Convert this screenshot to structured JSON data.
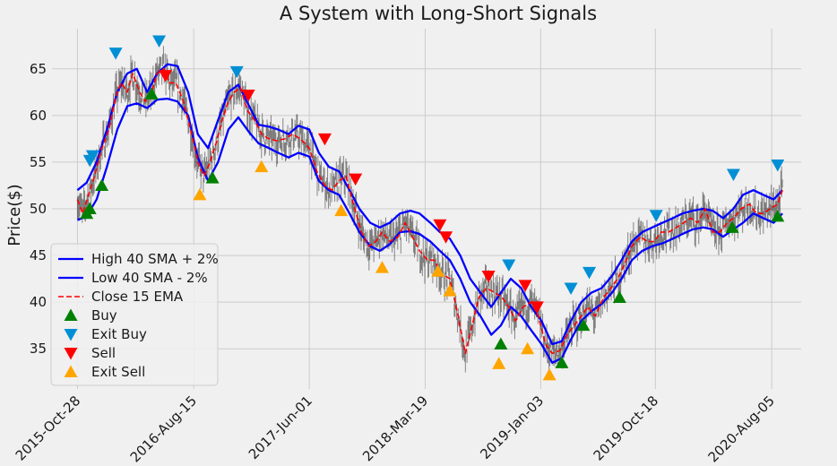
{
  "chart_data": {
    "type": "line",
    "title": "A System with Long-Short Signals",
    "xlabel": "",
    "ylabel": "Price($)",
    "x_range": [
      "2015-08-25",
      "2020-10-18"
    ],
    "ylim": [
      30.7,
      69.3
    ],
    "y_ticks": [
      35,
      40,
      45,
      50,
      55,
      60,
      65
    ],
    "x_ticks": [
      "2015-Oct-28",
      "2016-Aug-15",
      "2017-Jun-01",
      "2018-Mar-19",
      "2019-Jan-03",
      "2019-Oct-18",
      "2020-Aug-05"
    ],
    "grid": true,
    "legend_position": "lower-left",
    "colors": {
      "upper": "#0000ff",
      "lower": "#0000ff",
      "ema": "#ff0000",
      "buy": "#008000",
      "exit_buy": "#008fd5",
      "sell": "#ff0000",
      "exit_sell": "#ffa500",
      "candles": "#000000",
      "background": "#f0f0f0",
      "grid": "#cbcbcb"
    },
    "series": [
      {
        "name": "High 40 SMA + 2%",
        "style": "solid",
        "x": [
          "2015-10-28",
          "2015-11-20",
          "2015-12-15",
          "2016-01-10",
          "2016-02-05",
          "2016-03-01",
          "2016-03-25",
          "2016-04-20",
          "2016-05-15",
          "2016-06-10",
          "2016-07-05",
          "2016-08-01",
          "2016-08-25",
          "2016-09-20",
          "2016-10-15",
          "2016-11-10",
          "2016-12-05",
          "2017-01-01",
          "2017-01-25",
          "2017-02-20",
          "2017-03-15",
          "2017-04-10",
          "2017-05-05",
          "2017-06-01",
          "2017-06-25",
          "2017-07-20",
          "2017-08-15",
          "2017-09-10",
          "2017-10-05",
          "2017-11-01",
          "2017-11-25",
          "2017-12-20",
          "2018-01-15",
          "2018-02-10",
          "2018-03-05",
          "2018-04-01",
          "2018-04-25",
          "2018-05-20",
          "2018-06-15",
          "2018-07-10",
          "2018-08-05",
          "2018-09-01",
          "2018-09-25",
          "2018-10-20",
          "2018-11-15",
          "2018-12-10",
          "2019-01-05",
          "2019-02-01",
          "2019-02-25",
          "2019-03-20",
          "2019-04-15",
          "2019-05-10",
          "2019-06-05",
          "2019-07-01",
          "2019-07-25",
          "2019-08-20",
          "2019-09-15",
          "2019-10-10",
          "2019-11-05",
          "2019-12-01",
          "2019-12-25",
          "2020-01-20",
          "2020-02-15",
          "2020-03-10",
          "2020-04-05",
          "2020-05-01",
          "2020-05-25",
          "2020-06-20",
          "2020-07-15",
          "2020-08-10",
          "2020-09-01"
        ],
        "y": [
          52.0,
          52.8,
          55.0,
          58.5,
          62.5,
          64.5,
          65.0,
          62.5,
          64.5,
          65.5,
          65.3,
          62.5,
          58.0,
          56.5,
          59.5,
          62.5,
          63.3,
          61.0,
          59.0,
          58.8,
          58.5,
          58.0,
          58.9,
          58.5,
          56.0,
          54.5,
          54.0,
          52.0,
          50.0,
          48.5,
          48.0,
          48.5,
          49.5,
          49.8,
          49.5,
          48.5,
          47.5,
          46.8,
          45.0,
          42.5,
          41.0,
          39.5,
          41.0,
          42.5,
          41.5,
          39.5,
          38.0,
          35.5,
          35.8,
          38.0,
          40.0,
          41.0,
          41.5,
          42.8,
          44.5,
          46.5,
          47.5,
          48.0,
          48.5,
          49.0,
          49.5,
          49.8,
          50.0,
          49.8,
          49.0,
          50.0,
          51.5,
          52.0,
          51.5,
          51.0,
          52.0
        ]
      },
      {
        "name": "Low 40 SMA - 2%",
        "style": "solid",
        "x": [
          "2015-10-28",
          "2015-11-20",
          "2015-12-15",
          "2016-01-10",
          "2016-02-05",
          "2016-03-01",
          "2016-03-25",
          "2016-04-20",
          "2016-05-15",
          "2016-06-10",
          "2016-07-05",
          "2016-08-01",
          "2016-08-25",
          "2016-09-20",
          "2016-10-15",
          "2016-11-10",
          "2016-12-05",
          "2017-01-01",
          "2017-01-25",
          "2017-02-20",
          "2017-03-15",
          "2017-04-10",
          "2017-05-05",
          "2017-06-01",
          "2017-06-25",
          "2017-07-20",
          "2017-08-15",
          "2017-09-10",
          "2017-10-05",
          "2017-11-01",
          "2017-11-25",
          "2017-12-20",
          "2018-01-15",
          "2018-02-10",
          "2018-03-05",
          "2018-04-01",
          "2018-04-25",
          "2018-05-20",
          "2018-06-15",
          "2018-07-10",
          "2018-08-05",
          "2018-09-01",
          "2018-09-25",
          "2018-10-20",
          "2018-11-15",
          "2018-12-10",
          "2019-01-05",
          "2019-02-01",
          "2019-02-25",
          "2019-03-20",
          "2019-04-15",
          "2019-05-10",
          "2019-06-05",
          "2019-07-01",
          "2019-07-25",
          "2019-08-20",
          "2019-09-15",
          "2019-10-10",
          "2019-11-05",
          "2019-12-01",
          "2019-12-25",
          "2020-01-20",
          "2020-02-15",
          "2020-03-10",
          "2020-04-05",
          "2020-05-01",
          "2020-05-25",
          "2020-06-20",
          "2020-07-15",
          "2020-08-10",
          "2020-09-01"
        ],
        "y": [
          48.8,
          49.2,
          51.0,
          54.5,
          58.5,
          61.0,
          61.3,
          60.8,
          61.7,
          61.8,
          61.5,
          60.0,
          55.5,
          53.0,
          55.0,
          58.5,
          59.8,
          58.2,
          57.0,
          56.5,
          56.0,
          55.5,
          56.0,
          55.6,
          53.0,
          52.0,
          51.5,
          49.5,
          47.5,
          46.0,
          45.5,
          46.2,
          47.5,
          47.6,
          47.3,
          46.5,
          45.5,
          44.5,
          42.5,
          40.0,
          38.5,
          36.5,
          37.5,
          39.5,
          38.5,
          37.0,
          35.5,
          33.5,
          34.0,
          36.0,
          38.0,
          39.0,
          39.8,
          41.0,
          42.5,
          44.5,
          45.5,
          46.0,
          46.3,
          46.8,
          47.3,
          47.8,
          48.0,
          47.8,
          47.0,
          47.8,
          48.5,
          49.5,
          49.0,
          48.5,
          49.5
        ]
      },
      {
        "name": "Close 15 EMA",
        "style": "dashed",
        "x": [
          "2015-10-28",
          "2015-11-10",
          "2015-11-25",
          "2015-12-10",
          "2015-12-28",
          "2016-01-15",
          "2016-02-01",
          "2016-02-15",
          "2016-03-01",
          "2016-03-15",
          "2016-04-01",
          "2016-04-15",
          "2016-05-01",
          "2016-05-15",
          "2016-06-01",
          "2016-06-15",
          "2016-07-01",
          "2016-07-20",
          "2016-08-10",
          "2016-08-25",
          "2016-09-10",
          "2016-09-25",
          "2016-10-10",
          "2016-10-25",
          "2016-11-10",
          "2016-11-25",
          "2016-12-10",
          "2016-12-28",
          "2017-01-15",
          "2017-02-01",
          "2017-02-20",
          "2017-03-10",
          "2017-04-01",
          "2017-04-20",
          "2017-05-10",
          "2017-06-01",
          "2017-06-20",
          "2017-07-10",
          "2017-07-28",
          "2017-08-15",
          "2017-09-01",
          "2017-09-20",
          "2017-10-10",
          "2017-10-28",
          "2017-11-15",
          "2017-12-01",
          "2017-12-20",
          "2018-01-10",
          "2018-01-28",
          "2018-02-15",
          "2018-03-05",
          "2018-03-25",
          "2018-04-10",
          "2018-05-01",
          "2018-05-20",
          "2018-06-10",
          "2018-06-28",
          "2018-07-15",
          "2018-08-01",
          "2018-08-20",
          "2018-09-10",
          "2018-09-28",
          "2018-10-15",
          "2018-11-01",
          "2018-11-20",
          "2018-12-10",
          "2018-12-28",
          "2019-01-15",
          "2019-02-01",
          "2019-02-20",
          "2019-03-10",
          "2019-03-28",
          "2019-04-15",
          "2019-05-01",
          "2019-05-20",
          "2019-06-10",
          "2019-06-28",
          "2019-07-15",
          "2019-08-01",
          "2019-08-20",
          "2019-09-10",
          "2019-09-28",
          "2019-10-15",
          "2019-11-01",
          "2019-11-20",
          "2019-12-10",
          "2019-12-28",
          "2020-01-15",
          "2020-02-01",
          "2020-02-20",
          "2020-03-10",
          "2020-03-28",
          "2020-04-15",
          "2020-05-01",
          "2020-05-20",
          "2020-06-10",
          "2020-06-28",
          "2020-07-15",
          "2020-08-01",
          "2020-08-20",
          "2020-09-01"
        ],
        "y": [
          51.0,
          49.5,
          51.5,
          53.5,
          56.5,
          58.5,
          62.0,
          63.5,
          62.5,
          64.5,
          62.5,
          61.5,
          62.5,
          64.5,
          65.0,
          63.5,
          63.5,
          61.5,
          58.0,
          55.0,
          53.5,
          55.0,
          57.0,
          59.5,
          61.5,
          62.5,
          63.0,
          60.5,
          59.5,
          58.0,
          57.5,
          57.3,
          57.5,
          58.0,
          57.5,
          56.5,
          54.0,
          52.5,
          52.0,
          53.0,
          53.5,
          50.5,
          47.5,
          46.0,
          46.5,
          47.5,
          46.5,
          47.0,
          48.5,
          47.0,
          45.5,
          44.5,
          44.5,
          43.0,
          42.5,
          38.5,
          34.5,
          37.5,
          40.5,
          41.5,
          41.0,
          40.5,
          39.5,
          38.0,
          39.5,
          40.0,
          38.5,
          35.5,
          34.5,
          34.8,
          36.5,
          37.5,
          38.5,
          39.5,
          38.5,
          40.5,
          41.5,
          42.5,
          44.0,
          46.0,
          47.0,
          46.5,
          46.5,
          47.5,
          47.5,
          48.0,
          48.5,
          49.0,
          48.5,
          50.0,
          47.5,
          47.5,
          48.5,
          49.0,
          50.0,
          50.5,
          49.5,
          49.5,
          50.0,
          50.5,
          52.0
        ]
      }
    ],
    "signals": [
      {
        "name": "Buy",
        "marker": "triangle-up",
        "points": [
          {
            "x": "2015-11-20",
            "y": 49.5
          },
          {
            "x": "2015-11-28",
            "y": 50.0
          },
          {
            "x": "2015-12-28",
            "y": 52.5
          },
          {
            "x": "2016-05-01",
            "y": 62.3
          },
          {
            "x": "2016-10-01",
            "y": 53.3
          },
          {
            "x": "2018-09-25",
            "y": 35.5
          },
          {
            "x": "2019-02-25",
            "y": 33.5
          },
          {
            "x": "2019-04-20",
            "y": 37.5
          },
          {
            "x": "2019-07-20",
            "y": 40.5
          },
          {
            "x": "2020-04-28",
            "y": 48.0
          },
          {
            "x": "2020-08-20",
            "y": 49.2
          }
        ]
      },
      {
        "name": "Exit Buy",
        "marker": "triangle-down",
        "points": [
          {
            "x": "2015-11-28",
            "y": 55.2
          },
          {
            "x": "2015-12-05",
            "y": 55.7
          },
          {
            "x": "2016-02-01",
            "y": 66.7
          },
          {
            "x": "2016-05-20",
            "y": 68.0
          },
          {
            "x": "2016-12-01",
            "y": 64.7
          },
          {
            "x": "2018-10-15",
            "y": 44.0
          },
          {
            "x": "2019-03-20",
            "y": 41.5
          },
          {
            "x": "2019-05-05",
            "y": 43.2
          },
          {
            "x": "2019-10-20",
            "y": 49.3
          },
          {
            "x": "2020-05-01",
            "y": 53.7
          },
          {
            "x": "2020-08-20",
            "y": 54.7
          }
        ]
      },
      {
        "name": "Sell",
        "marker": "triangle-down",
        "points": [
          {
            "x": "2016-06-05",
            "y": 64.3
          },
          {
            "x": "2016-12-30",
            "y": 62.2
          },
          {
            "x": "2017-07-10",
            "y": 57.5
          },
          {
            "x": "2017-09-25",
            "y": 53.2
          },
          {
            "x": "2018-04-25",
            "y": 48.3
          },
          {
            "x": "2018-05-10",
            "y": 47.0
          },
          {
            "x": "2018-08-25",
            "y": 42.8
          },
          {
            "x": "2018-11-25",
            "y": 41.8
          },
          {
            "x": "2018-12-25",
            "y": 39.5
          }
        ]
      },
      {
        "name": "Exit Sell",
        "marker": "triangle-up",
        "points": [
          {
            "x": "2016-08-30",
            "y": 51.5
          },
          {
            "x": "2017-02-01",
            "y": 54.5
          },
          {
            "x": "2017-08-20",
            "y": 49.8
          },
          {
            "x": "2017-12-01",
            "y": 43.7
          },
          {
            "x": "2018-04-20",
            "y": 43.3
          },
          {
            "x": "2018-05-20",
            "y": 41.2
          },
          {
            "x": "2018-09-20",
            "y": 33.4
          },
          {
            "x": "2018-12-01",
            "y": 35.0
          },
          {
            "x": "2019-01-25",
            "y": 32.2
          }
        ]
      }
    ]
  }
}
